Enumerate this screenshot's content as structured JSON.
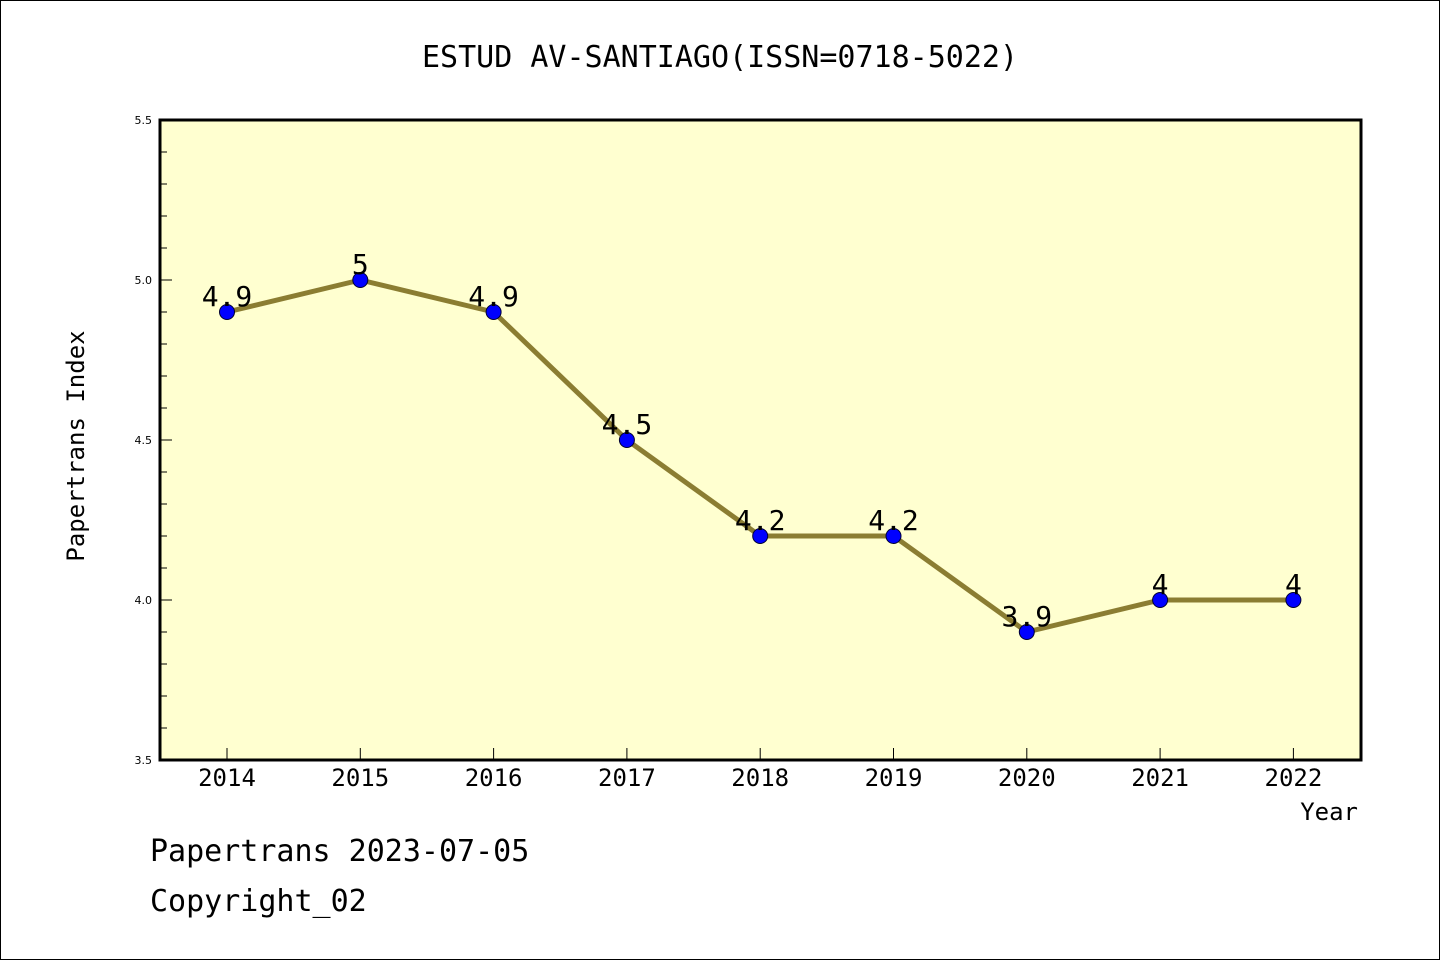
{
  "chart_data": {
    "type": "line",
    "title": "ESTUD AV-SANTIAGO(ISSN=0718-5022)",
    "xlabel": "Year",
    "ylabel": "Papertrans Index",
    "x": [
      "2014",
      "2015",
      "2016",
      "2017",
      "2018",
      "2019",
      "2020",
      "2021",
      "2022"
    ],
    "values": [
      4.9,
      5,
      4.9,
      4.5,
      4.2,
      4.2,
      3.9,
      4,
      4
    ],
    "data_labels": [
      "4.9",
      "5",
      "4.9",
      "4.5",
      "4.2",
      "4.2",
      "3.9",
      "4",
      "4"
    ],
    "ylim": [
      3.5,
      5.5
    ],
    "yticks": [
      "3.5",
      "4.0",
      "4.5",
      "5.0",
      "5.5"
    ],
    "grid": false,
    "colors": {
      "plot_background": "#ffffd0",
      "line": "#8b7d32",
      "marker": "#0000ff"
    }
  },
  "footer": {
    "line1": "Papertrans 2023-07-05",
    "line2": "Copyright_02"
  }
}
